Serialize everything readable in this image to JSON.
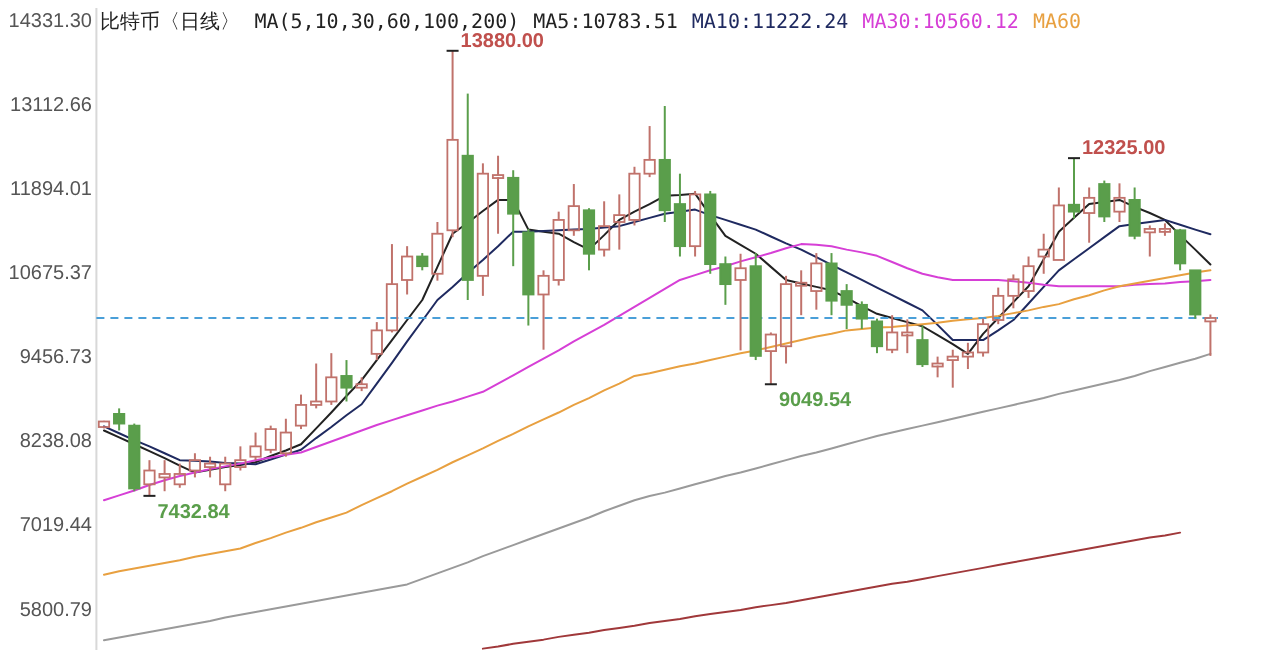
{
  "chart_data": {
    "type": "candlestick",
    "title": "比特币〈日线〉",
    "subtitle": "MA(5,10,30,60,100,200)",
    "legend": "top",
    "tick_labels": "y",
    "categories": [
      null,
      null,
      null,
      null,
      null,
      null,
      null,
      null,
      null,
      null,
      null,
      null,
      null,
      null,
      null,
      null,
      null,
      null,
      null,
      null,
      null,
      null,
      null,
      null,
      null,
      null,
      null,
      null,
      null,
      null,
      null,
      null,
      null,
      null,
      null,
      null,
      null,
      null,
      null,
      null,
      null,
      null,
      null,
      null,
      null,
      null,
      null,
      null,
      null,
      null,
      null,
      null,
      null,
      null,
      null,
      null,
      null,
      null,
      null,
      null,
      null,
      null,
      null,
      null,
      null,
      null,
      null,
      null,
      null,
      null,
      null,
      null,
      null,
      null
    ],
    "ohlc": [
      [
        8430,
        8520,
        8410,
        8510
      ],
      [
        8620,
        8700,
        8380,
        8480
      ],
      [
        8450,
        8480,
        7500,
        7540
      ],
      [
        7600,
        7950,
        7432.84,
        7800
      ],
      [
        7700,
        7950,
        7500,
        7750
      ],
      [
        7600,
        7900,
        7550,
        7750
      ],
      [
        7800,
        8050,
        7700,
        7950
      ],
      [
        7850,
        8000,
        7700,
        7900
      ],
      [
        7600,
        8000,
        7500,
        7900
      ],
      [
        7850,
        8150,
        7800,
        7950
      ],
      [
        8000,
        8350,
        7950,
        8150
      ],
      [
        8100,
        8450,
        8050,
        8400
      ],
      [
        8050,
        8550,
        8000,
        8350
      ],
      [
        8450,
        8900,
        8400,
        8750
      ],
      [
        8750,
        9350,
        8700,
        8800
      ],
      [
        8800,
        9500,
        8750,
        9150
      ],
      [
        9170,
        9400,
        8800,
        9000
      ],
      [
        9000,
        9150,
        8950,
        9050
      ],
      [
        9490,
        9950,
        9400,
        9830
      ],
      [
        9830,
        11080,
        9800,
        10500
      ],
      [
        10560,
        11050,
        10350,
        10900
      ],
      [
        10900,
        10950,
        10700,
        10760
      ],
      [
        10650,
        11400,
        10550,
        11230
      ],
      [
        11280,
        13880,
        11180,
        12590
      ],
      [
        12360,
        13260,
        10270,
        10560
      ],
      [
        10620,
        12250,
        10330,
        12100
      ],
      [
        12050,
        12360,
        11230,
        12080
      ],
      [
        12040,
        12150,
        10760,
        11520
      ],
      [
        11250,
        11300,
        9900,
        10350
      ],
      [
        10350,
        10700,
        9550,
        10620
      ],
      [
        10560,
        11550,
        10480,
        11430
      ],
      [
        11280,
        11950,
        11200,
        11630
      ],
      [
        11570,
        11600,
        10700,
        10940
      ],
      [
        11000,
        11700,
        10900,
        11340
      ],
      [
        11400,
        11800,
        11000,
        11500
      ],
      [
        11430,
        12200,
        11350,
        12100
      ],
      [
        12100,
        12790,
        12050,
        12300
      ],
      [
        12300,
        13080,
        11400,
        11570
      ],
      [
        11660,
        12100,
        10900,
        11050
      ],
      [
        11050,
        11850,
        10900,
        11800
      ],
      [
        11800,
        11850,
        10650,
        10790
      ],
      [
        10790,
        10900,
        10200,
        10500
      ],
      [
        10560,
        10940,
        9540,
        10730
      ],
      [
        10760,
        10950,
        9400,
        9460
      ],
      [
        9530,
        9800,
        9049.54,
        9770
      ],
      [
        9600,
        10620,
        9350,
        10500
      ],
      [
        10490,
        10700,
        10050,
        10520
      ],
      [
        10400,
        10950,
        10130,
        10800
      ],
      [
        10800,
        10950,
        10050,
        10260
      ],
      [
        10400,
        10500,
        9850,
        10200
      ],
      [
        10200,
        10250,
        9850,
        10000
      ],
      [
        9960,
        10000,
        9500,
        9600
      ],
      [
        9550,
        10050,
        9500,
        9800
      ],
      [
        9780,
        9990,
        9500,
        9800
      ],
      [
        9690,
        9900,
        9300,
        9340
      ],
      [
        9320,
        9450,
        9150,
        9350
      ],
      [
        9400,
        9550,
        9000,
        9450
      ],
      [
        9450,
        9650,
        9270,
        9510
      ],
      [
        9510,
        10000,
        9450,
        9920
      ],
      [
        9980,
        10450,
        9920,
        10330
      ],
      [
        10330,
        10640,
        10150,
        10570
      ],
      [
        10400,
        10900,
        10300,
        10760
      ],
      [
        10900,
        11230,
        10650,
        11000
      ],
      [
        10850,
        11900,
        10850,
        11640
      ],
      [
        11650,
        12325,
        11450,
        11550
      ],
      [
        11530,
        11900,
        11100,
        11750
      ],
      [
        11950,
        12000,
        11400,
        11480
      ],
      [
        11550,
        11960,
        11400,
        11750
      ],
      [
        11720,
        11900,
        11150,
        11200
      ],
      [
        11250,
        11350,
        10900,
        11300
      ],
      [
        11280,
        11380,
        11200,
        11300
      ],
      [
        11280,
        11300,
        10700,
        10800
      ],
      [
        10700,
        10700,
        10000,
        10060
      ],
      [
        9960,
        10060,
        9460,
        10010
      ]
    ],
    "series": [
      {
        "name": "MA5:10783.51",
        "color": "#222222",
        "type": "line",
        "values": [
          8380,
          8280,
          8180,
          8080,
          7980,
          7870,
          7770,
          7810,
          7850,
          7880,
          7920,
          8010,
          8090,
          8180,
          8410,
          8640,
          8880,
          9110,
          9400,
          9690,
          9980,
          10270,
          10750,
          11230,
          11390,
          11560,
          11720,
          11720,
          11290,
          11260,
          11230,
          11110,
          11000,
          11210,
          11430,
          11550,
          11660,
          11780,
          11790,
          11810,
          11500,
          11200,
          11070,
          10940,
          10750,
          10560,
          10510,
          10460,
          10410,
          10300,
          10180,
          10070,
          10010,
          9950,
          9890,
          9760,
          9630,
          9490,
          9780,
          10010,
          10240,
          10470,
          10860,
          11260,
          11460,
          11660,
          11690,
          11720,
          11620,
          11530,
          11430,
          11210,
          11000,
          10783.51
        ]
      },
      {
        "name": "MA10:11222.24",
        "color": "#1f2a60",
        "type": "line",
        "values": [
          8440,
          8340,
          8240,
          8150,
          8050,
          7950,
          7940,
          7930,
          7910,
          7900,
          7890,
          7960,
          8030,
          8100,
          8270,
          8430,
          8600,
          8760,
          9060,
          9360,
          9670,
          9970,
          10270,
          10460,
          10660,
          10850,
          11050,
          11260,
          11260,
          11270,
          11280,
          11290,
          11300,
          11320,
          11340,
          11400,
          11460,
          11520,
          11550,
          11580,
          11500,
          11430,
          11360,
          11290,
          11190,
          11090,
          11000,
          10890,
          10780,
          10670,
          10560,
          10450,
          10340,
          10230,
          10120,
          9910,
          9690,
          9690,
          9690,
          9830,
          9980,
          10220,
          10460,
          10700,
          10860,
          11020,
          11180,
          11340,
          11370,
          11400,
          11430,
          11360,
          11290,
          11222.24
        ]
      },
      {
        "name": "MA30:10560.12",
        "color": "#d63fd6",
        "type": "line",
        "values": [
          7370,
          7440,
          7510,
          7590,
          7660,
          7720,
          7770,
          7820,
          7860,
          7900,
          7950,
          7990,
          8030,
          8060,
          8140,
          8220,
          8300,
          8380,
          8460,
          8530,
          8600,
          8670,
          8740,
          8800,
          8870,
          8940,
          9060,
          9180,
          9300,
          9420,
          9540,
          9670,
          9790,
          9910,
          10040,
          10170,
          10300,
          10430,
          10560,
          10630,
          10700,
          10760,
          10830,
          10890,
          10950,
          11020,
          11080,
          11070,
          11050,
          11000,
          10960,
          10910,
          10820,
          10730,
          10650,
          10600,
          10560,
          10560,
          10560,
          10560,
          10540,
          10520,
          10490,
          10470,
          10470,
          10470,
          10470,
          10470,
          10490,
          10500,
          10510,
          10530,
          10540,
          10560.12
        ]
      },
      {
        "name": "MA60",
        "color": "#e8a040",
        "type": "line",
        "values": [
          6290,
          6340,
          6380,
          6420,
          6460,
          6500,
          6550,
          6590,
          6630,
          6670,
          6750,
          6820,
          6900,
          6970,
          7050,
          7120,
          7190,
          7300,
          7400,
          7500,
          7610,
          7710,
          7810,
          7920,
          8020,
          8120,
          8230,
          8330,
          8440,
          8540,
          8640,
          8750,
          8850,
          8960,
          9060,
          9170,
          9210,
          9260,
          9310,
          9350,
          9400,
          9450,
          9500,
          9540,
          9590,
          9640,
          9690,
          9740,
          9780,
          9830,
          9850,
          9870,
          9880,
          9900,
          9920,
          9940,
          9970,
          9990,
          10010,
          10040,
          10080,
          10120,
          10170,
          10210,
          10280,
          10340,
          10410,
          10470,
          10510,
          10550,
          10590,
          10630,
          10670,
          10700
        ]
      },
      {
        "color": "#9a9a9a",
        "type": "line",
        "values": [
          5340,
          5380,
          5420,
          5460,
          5500,
          5540,
          5580,
          5620,
          5670,
          5710,
          5750,
          5790,
          5830,
          5870,
          5910,
          5950,
          5990,
          6030,
          6070,
          6110,
          6150,
          6230,
          6310,
          6390,
          6470,
          6560,
          6640,
          6720,
          6800,
          6880,
          6960,
          7040,
          7120,
          7210,
          7290,
          7370,
          7430,
          7480,
          7540,
          7600,
          7660,
          7720,
          7770,
          7830,
          7890,
          7950,
          8010,
          8060,
          8120,
          8180,
          8240,
          8300,
          8350,
          8400,
          8450,
          8500,
          8550,
          8600,
          8650,
          8700,
          8750,
          8800,
          8850,
          8910,
          8960,
          9010,
          9060,
          9110,
          9170,
          9240,
          9300,
          9360,
          9420,
          9490
        ]
      },
      {
        "color": "#a0383a",
        "type": "line",
        "values": [
          null,
          null,
          null,
          null,
          null,
          null,
          null,
          null,
          null,
          null,
          null,
          null,
          null,
          null,
          null,
          null,
          null,
          null,
          null,
          null,
          null,
          null,
          null,
          null,
          null,
          5220,
          5250,
          5290,
          5320,
          5350,
          5390,
          5420,
          5450,
          5490,
          5520,
          5550,
          5590,
          5620,
          5650,
          5690,
          5720,
          5750,
          5780,
          5820,
          5850,
          5880,
          5920,
          5960,
          6000,
          6040,
          6080,
          6120,
          6160,
          6190,
          6230,
          6270,
          6310,
          6350,
          6390,
          6430,
          6470,
          6510,
          6550,
          6590,
          6630,
          6670,
          6710,
          6750,
          6790,
          6830,
          6860,
          6900,
          null,
          null
        ]
      }
    ],
    "ylim": [
      5200,
      14500
    ],
    "yticks": [
      {
        "value": 5800.79,
        "label": "5800.79"
      },
      {
        "value": 7019.44,
        "label": "7019.44"
      },
      {
        "value": 8238.08,
        "label": "8238.08"
      },
      {
        "value": 9456.73,
        "label": "9456.73"
      },
      {
        "value": 10675.37,
        "label": "10675.37"
      },
      {
        "value": 11894.01,
        "label": "11894.01"
      },
      {
        "value": 13112.66,
        "label": "13112.66"
      },
      {
        "value": 14331.3,
        "label": "14331.30"
      }
    ],
    "ref_lines": [
      {
        "axis": "y",
        "value": 10010,
        "color": "#4a9fd8",
        "line_style": "dashed"
      }
    ],
    "annotations": [
      "13880.00",
      "7432.84",
      "9049.54",
      "12325.00"
    ]
  }
}
